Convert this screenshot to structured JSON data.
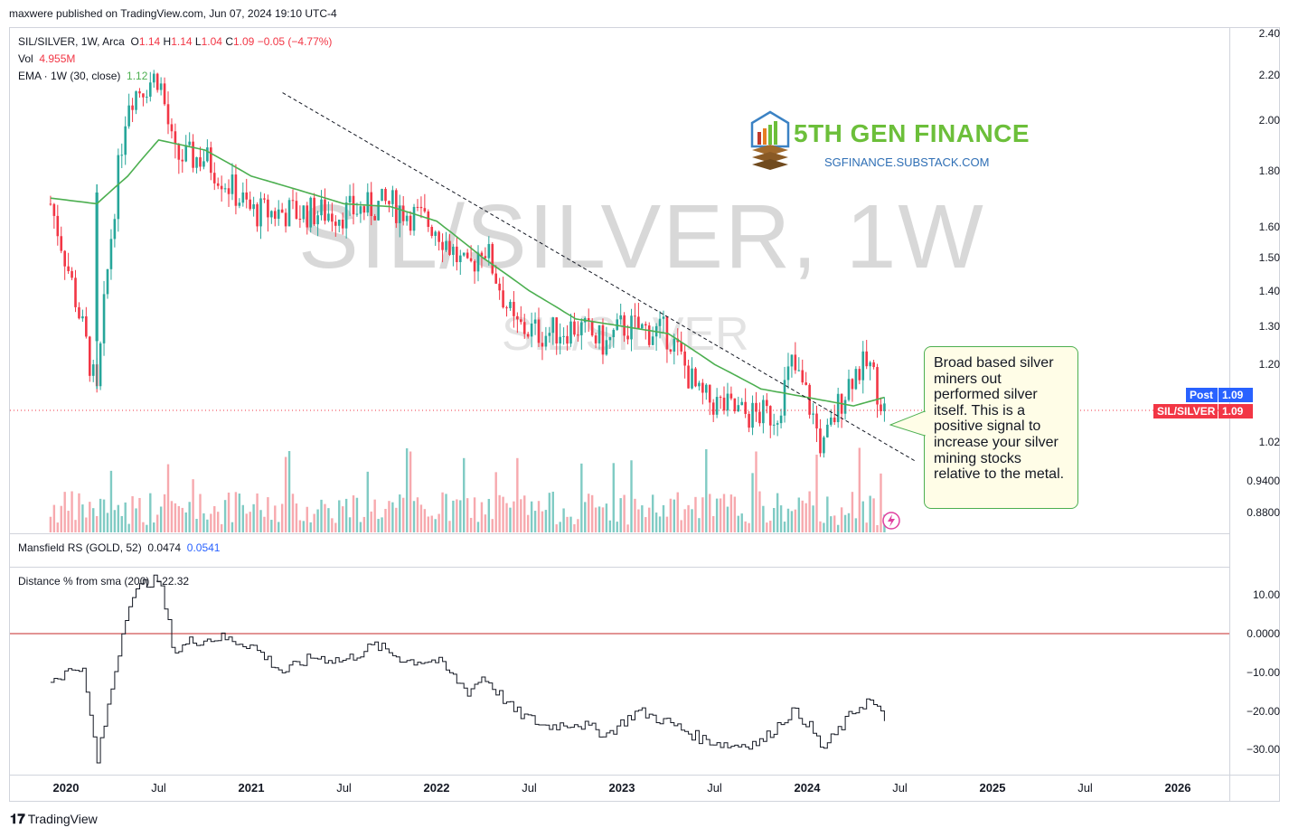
{
  "header": {
    "published": "maxwere published on TradingView.com, Jun 07, 2024 19:10 UTC-4"
  },
  "main_legend": {
    "symbol": "SIL/SILVER, 1W, Arca",
    "o_label": "O",
    "o_val": "1.14",
    "h_label": "H",
    "h_val": "1.14",
    "l_label": "L",
    "l_val": "1.04",
    "c_label": "C",
    "c_val": "1.09",
    "change": "−0.05 (−4.77%)",
    "vol_label": "Vol",
    "vol_val": "4.955M",
    "ema_label": "EMA · 1W (30, close)",
    "ema_val": "1.12"
  },
  "indicator_legends": {
    "mansfield_label": "Mansfield RS (GOLD, 52)",
    "mansfield_val1": "0.0474",
    "mansfield_val2": "0.0541",
    "distance_label": "Distance % from sma (200)",
    "distance_val": "−22.32"
  },
  "watermark": {
    "big": "SIL/SILVER, 1W",
    "small": "SIL/SILVER"
  },
  "logo": {
    "title": "5TH GEN FINANCE",
    "subtitle": "SGFINANCE.SUBSTACK.COM"
  },
  "callout": {
    "text": "Broad based silver miners out performed silver itself.  This is a positive signal to increase your silver mining stocks relative to the metal."
  },
  "badges": {
    "post_label": "Post",
    "post_val": "1.09",
    "sym_label": "SIL/SILVER",
    "sym_val": "1.09"
  },
  "footer": {
    "brand": "TradingView"
  },
  "colors": {
    "up": "#26a69a",
    "down": "#f23645",
    "ema": "#4caf50",
    "vol_up": "#80cbc4",
    "vol_down": "#f7a9ae",
    "zero_line": "#c62828",
    "badge_blue": "#2962ff",
    "badge_red": "#f23645"
  },
  "chart_data": [
    {
      "type": "candlestick",
      "title": "SIL/SILVER, 1W, Arca",
      "y_scale": "log",
      "y_ticks": [
        "2.40",
        "2.20",
        "2.00",
        "1.80",
        "1.60",
        "1.50",
        "1.40",
        "1.30",
        "1.20",
        "1.02",
        "0.9400",
        "0.8800"
      ],
      "x_ticks": [
        "2020",
        "Jul",
        "2021",
        "Jul",
        "2022",
        "Jul",
        "2023",
        "Jul",
        "2024",
        "Jul",
        "2025",
        "Jul",
        "2026"
      ],
      "price_path_approx": [
        {
          "x": "2019-12",
          "y": 1.68
        },
        {
          "x": "2020-03",
          "y": 1.12
        },
        {
          "x": "2020-05",
          "y": 2.1
        },
        {
          "x": "2020-07",
          "y": 2.2
        },
        {
          "x": "2020-08",
          "y": 1.85
        },
        {
          "x": "2020-10",
          "y": 1.85
        },
        {
          "x": "2021-01",
          "y": 1.65
        },
        {
          "x": "2021-04",
          "y": 1.65
        },
        {
          "x": "2021-07",
          "y": 1.65
        },
        {
          "x": "2021-10",
          "y": 1.68
        },
        {
          "x": "2022-01",
          "y": 1.6
        },
        {
          "x": "2022-03",
          "y": 1.45
        },
        {
          "x": "2022-04",
          "y": 1.55
        },
        {
          "x": "2022-06",
          "y": 1.3
        },
        {
          "x": "2022-08",
          "y": 1.28
        },
        {
          "x": "2022-10",
          "y": 1.3
        },
        {
          "x": "2022-12",
          "y": 1.25
        },
        {
          "x": "2023-01",
          "y": 1.3
        },
        {
          "x": "2023-04",
          "y": 1.28
        },
        {
          "x": "2023-06",
          "y": 1.12
        },
        {
          "x": "2023-09",
          "y": 1.08
        },
        {
          "x": "2023-11",
          "y": 1.08
        },
        {
          "x": "2023-12",
          "y": 1.2
        },
        {
          "x": "2024-01",
          "y": 1.12
        },
        {
          "x": "2024-02",
          "y": 1.0
        },
        {
          "x": "2024-03",
          "y": 1.1
        },
        {
          "x": "2024-04",
          "y": 1.18
        },
        {
          "x": "2024-05",
          "y": 1.2
        },
        {
          "x": "2024-06",
          "y": 1.09
        }
      ],
      "ema_path_approx": [
        {
          "x": "2019-12",
          "y": 1.7
        },
        {
          "x": "2020-03",
          "y": 1.68
        },
        {
          "x": "2020-05",
          "y": 1.78
        },
        {
          "x": "2020-07",
          "y": 1.92
        },
        {
          "x": "2020-10",
          "y": 1.88
        },
        {
          "x": "2021-01",
          "y": 1.78
        },
        {
          "x": "2021-07",
          "y": 1.68
        },
        {
          "x": "2021-10",
          "y": 1.67
        },
        {
          "x": "2022-01",
          "y": 1.62
        },
        {
          "x": "2022-04",
          "y": 1.5
        },
        {
          "x": "2022-07",
          "y": 1.4
        },
        {
          "x": "2022-10",
          "y": 1.32
        },
        {
          "x": "2023-01",
          "y": 1.3
        },
        {
          "x": "2023-04",
          "y": 1.28
        },
        {
          "x": "2023-07",
          "y": 1.2
        },
        {
          "x": "2023-10",
          "y": 1.14
        },
        {
          "x": "2024-01",
          "y": 1.12
        },
        {
          "x": "2024-04",
          "y": 1.1
        },
        {
          "x": "2024-06",
          "y": 1.12
        }
      ],
      "trendline": [
        {
          "x": "2020-08",
          "y": 2.12
        },
        {
          "x": "2024-08",
          "y": 0.98
        }
      ]
    },
    {
      "type": "line",
      "title": "Distance % from sma (200)",
      "y_ticks": [
        "10.00",
        "0.0000",
        "−10.00",
        "−20.00",
        "−30.00"
      ],
      "x": [
        "2019-12",
        "2020-02",
        "2020-03",
        "2020-05",
        "2020-06",
        "2020-07",
        "2020-08",
        "2020-09",
        "2020-11",
        "2021-01",
        "2021-03",
        "2021-05",
        "2021-07",
        "2021-09",
        "2021-11",
        "2022-01",
        "2022-03",
        "2022-04",
        "2022-06",
        "2022-08",
        "2022-10",
        "2022-12",
        "2023-02",
        "2023-04",
        "2023-06",
        "2023-08",
        "2023-10",
        "2023-12",
        "2024-01",
        "2024-02",
        "2024-04",
        "2024-05",
        "2024-06"
      ],
      "y": [
        -12,
        -8,
        -33,
        8,
        13,
        14,
        -5,
        -2,
        -1,
        -3,
        -10,
        -6,
        -7,
        -3,
        -7,
        -7,
        -15,
        -11,
        -20,
        -24,
        -23,
        -26,
        -20,
        -23,
        -27,
        -29,
        -28,
        -20,
        -23,
        -30,
        -20,
        -17,
        -22.32
      ]
    }
  ]
}
